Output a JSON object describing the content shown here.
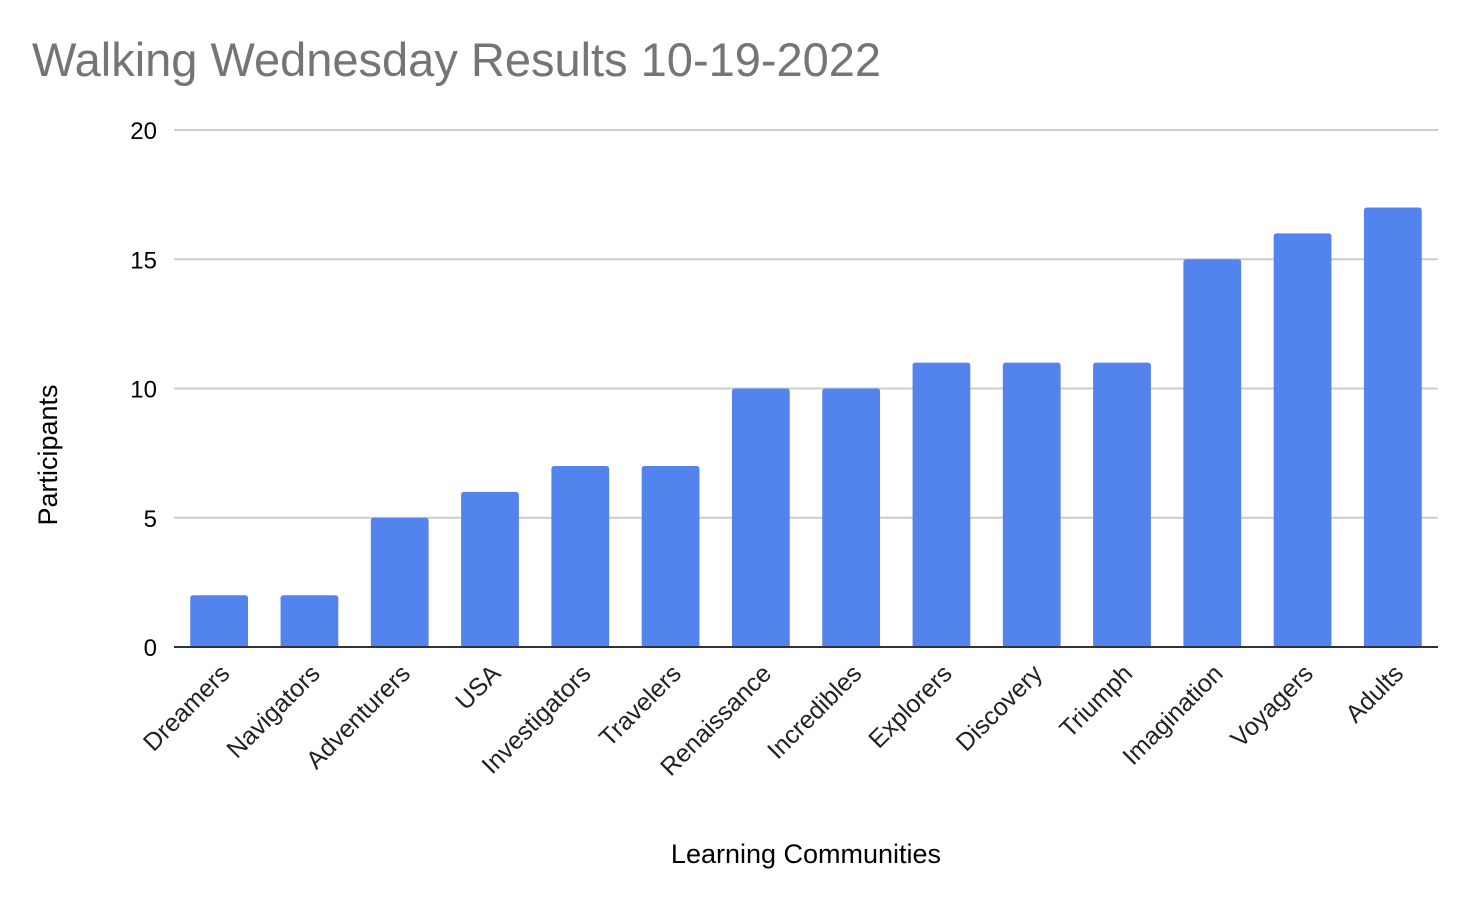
{
  "chart_data": {
    "type": "bar",
    "title": "Walking Wednesday Results  10-19-2022",
    "xlabel": "Learning Communities",
    "ylabel": "Participants",
    "categories": [
      "Dreamers",
      "Navigators",
      "Adventurers",
      "USA",
      "Investigators",
      "Travelers",
      "Renaissance",
      "Incredibles",
      "Explorers",
      "Discovery",
      "Triumph",
      "Imagination",
      "Voyagers",
      "Adults"
    ],
    "values": [
      2,
      2,
      5,
      6,
      7,
      7,
      10,
      10,
      11,
      11,
      11,
      15,
      16,
      17
    ],
    "ylim": [
      0,
      20
    ],
    "yticks": [
      0,
      5,
      10,
      15,
      20
    ],
    "grid": true,
    "legend": "none",
    "colors": {
      "bar": "#5383ec",
      "title": "#757575",
      "grid": "#cccccc"
    }
  }
}
